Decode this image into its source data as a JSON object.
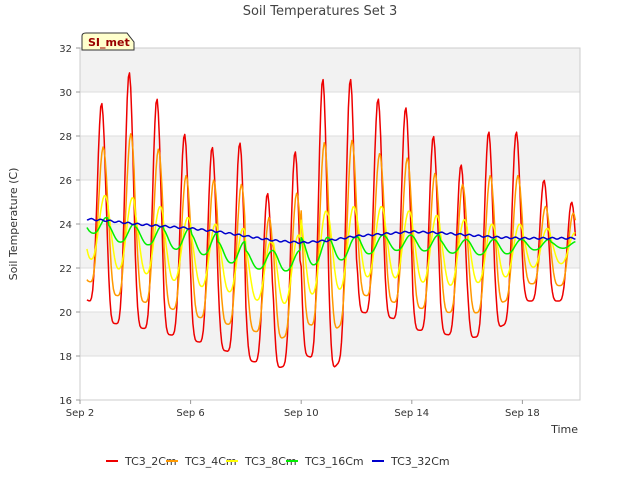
{
  "chart_data": {
    "type": "line",
    "title": "Soil Temperatures Set 3",
    "xlabel": "Time",
    "ylabel": "Soil Temperature (C)",
    "site_badge": "SI_met",
    "ylim": [
      16,
      32
    ],
    "xlim": [
      "2023-09-02",
      "2023-09-20T02:00"
    ],
    "yticks": [
      16,
      18,
      20,
      22,
      24,
      26,
      28,
      30,
      32
    ],
    "xticks": [
      {
        "label": "Sep 2",
        "date": "2023-09-02"
      },
      {
        "label": "Sep 6",
        "date": "2023-09-06"
      },
      {
        "label": "Sep 10",
        "date": "2023-09-10"
      },
      {
        "label": "Sep 14",
        "date": "2023-09-14"
      },
      {
        "label": "Sep 18",
        "date": "2023-09-18"
      }
    ],
    "grid": true,
    "legend_position": "bottom",
    "days": [
      "Sep 2",
      "Sep 3",
      "Sep 4",
      "Sep 5",
      "Sep 6",
      "Sep 7",
      "Sep 8",
      "Sep 9",
      "Sep 10",
      "Sep 11",
      "Sep 12",
      "Sep 13",
      "Sep 14",
      "Sep 15",
      "Sep 16",
      "Sep 17",
      "Sep 18",
      "Sep 19"
    ],
    "series": [
      {
        "name": "TC3_2Cm",
        "color": "#ee0000",
        "daily_max": [
          29.5,
          30.9,
          29.7,
          28.1,
          27.5,
          27.7,
          25.4,
          27.3,
          30.6,
          30.6,
          29.7,
          29.3,
          28.0,
          26.7,
          28.2,
          28.2,
          26.0,
          25.0
        ],
        "daily_min": [
          20.7,
          19.5,
          19.3,
          19.0,
          18.7,
          18.3,
          17.8,
          17.4,
          18.1,
          17.2,
          20.0,
          19.8,
          19.2,
          19.0,
          18.8,
          19.2,
          20.5,
          20.5
        ]
      },
      {
        "name": "TC3_4Cm",
        "color": "#ff9900",
        "daily_max": [
          27.5,
          28.1,
          27.4,
          26.2,
          26.0,
          25.8,
          24.3,
          25.4,
          27.7,
          27.8,
          27.2,
          27.0,
          26.3,
          25.8,
          26.2,
          26.2,
          24.8,
          24.5
        ],
        "daily_min": [
          21.5,
          20.8,
          20.5,
          20.2,
          19.8,
          19.5,
          19.2,
          18.7,
          19.5,
          19.0,
          20.8,
          20.5,
          20.2,
          20.0,
          19.9,
          20.3,
          21.3,
          21.2
        ]
      },
      {
        "name": "TC3_8Cm",
        "color": "#ffff00",
        "daily_max": [
          25.3,
          25.2,
          24.8,
          24.3,
          24.0,
          23.8,
          23.2,
          23.5,
          24.6,
          24.8,
          24.8,
          24.6,
          24.4,
          24.2,
          24.0,
          24.0,
          23.8,
          23.6
        ],
        "daily_min": [
          22.5,
          22.0,
          21.8,
          21.5,
          21.2,
          21.0,
          20.6,
          20.3,
          20.8,
          20.9,
          21.6,
          21.6,
          21.4,
          21.2,
          21.3,
          21.5,
          22.0,
          22.2
        ]
      },
      {
        "name": "TC3_16Cm",
        "color": "#00ee00",
        "daily_max": [
          24.3,
          24.0,
          23.9,
          23.8,
          23.6,
          23.2,
          22.8,
          22.8,
          23.4,
          23.4,
          23.5,
          23.5,
          23.5,
          23.3,
          23.3,
          23.3,
          23.3,
          23.2
        ],
        "daily_min": [
          23.7,
          23.2,
          23.1,
          22.9,
          22.7,
          22.3,
          22.0,
          21.8,
          22.1,
          22.3,
          22.6,
          22.8,
          22.8,
          22.7,
          22.6,
          22.6,
          22.8,
          22.9
        ]
      },
      {
        "name": "TC3_32Cm",
        "color": "#0000cc",
        "daily_mean": [
          24.25,
          24.15,
          24.0,
          23.9,
          23.8,
          23.65,
          23.45,
          23.25,
          23.15,
          23.25,
          23.45,
          23.55,
          23.65,
          23.6,
          23.5,
          23.4,
          23.35,
          23.35
        ]
      }
    ]
  }
}
